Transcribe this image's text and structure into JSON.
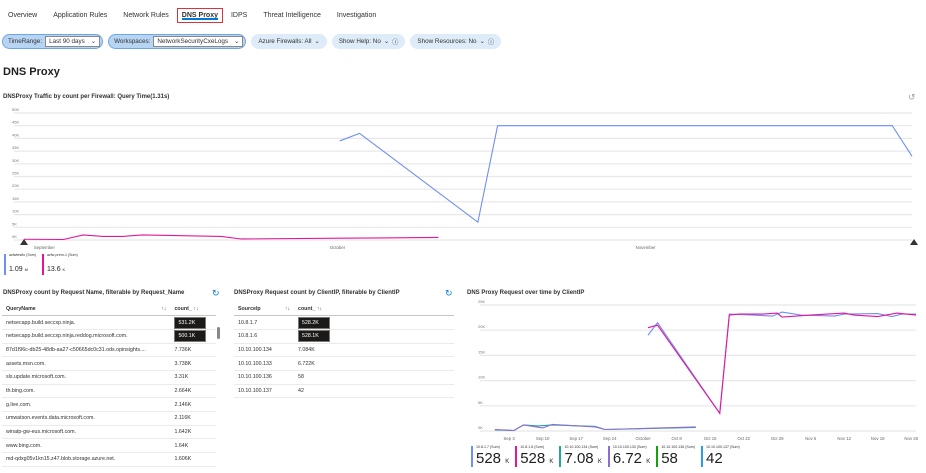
{
  "tabs": [
    "Overview",
    "Application Rules",
    "Network Rules",
    "DNS Proxy",
    "IDPS",
    "Threat Intelligence",
    "Investigation"
  ],
  "active_tab": "DNS Proxy",
  "params": {
    "timerange_label": "TimeRange:",
    "timerange_value": "Last 90 days",
    "workspaces_label": "Workspaces:",
    "workspaces_value": "NetworkSecurityCxeLogs",
    "firewalls": "Azure Firewalls: All",
    "show_help": "Show Help: No",
    "show_resources": "Show Resources: No"
  },
  "page_title": "DNS Proxy",
  "colors": {
    "blue": "#6f8ff5",
    "pink": "#e3169b",
    "teal": "#26a59a",
    "purple": "#8a6fd1",
    "green": "#13a10e",
    "lightblue": "#2a9cf0",
    "accent": "#0078d4"
  },
  "chart_data": [
    {
      "type": "line",
      "title": "DNSProxy Traffic by count per Firewall: Query Time(1.31s)",
      "ylim": [
        0,
        50000
      ],
      "yticks": [
        "0K",
        "5K",
        "10K",
        "15K",
        "20K",
        "25K",
        "30K",
        "35K",
        "40K",
        "45K",
        "50K"
      ],
      "xlim": [
        "2023-08-31",
        "2023-11-29"
      ],
      "xticks": [
        {
          "label": "September",
          "date": "2023-09-01"
        },
        {
          "label": "October",
          "date": "2023-10-01"
        },
        {
          "label": "November",
          "date": "2023-11-01"
        }
      ],
      "grid": true,
      "legend": "bottom-left",
      "series": [
        {
          "name": "azfwtestfo (Sum)",
          "total": "1.09",
          "unit": "M",
          "color": "#6f8ff5",
          "points": [
            [
              "2023-10-02",
              39000
            ],
            [
              "2023-10-04",
              42000
            ],
            [
              "2023-10-16",
              7000
            ],
            [
              "2023-10-18",
              45000
            ],
            [
              "2023-11-27",
              45000
            ],
            [
              "2023-11-29",
              33000
            ]
          ]
        },
        {
          "name": "azfw-prem-1 (Sum)",
          "total": "13.6",
          "unit": "K",
          "color": "#e3169b",
          "points": [
            [
              "2023-08-31",
              300
            ],
            [
              "2023-09-04",
              200
            ],
            [
              "2023-09-06",
              2000
            ],
            [
              "2023-09-08",
              1400
            ],
            [
              "2023-09-10",
              1400
            ],
            [
              "2023-09-12",
              2000
            ],
            [
              "2023-09-20",
              1400
            ],
            [
              "2023-09-22",
              400
            ],
            [
              "2023-10-02",
              700
            ],
            [
              "2023-10-12",
              1000
            ]
          ]
        }
      ]
    },
    {
      "type": "line",
      "title": "DNS Proxy Request over time by ClientIP",
      "ylim": [
        0,
        25000
      ],
      "yticks": [
        "0K",
        "5K",
        "10K",
        "15K",
        "20K",
        "25K"
      ],
      "xlim": [
        "2023-08-30",
        "2023-11-27"
      ],
      "xticks": [
        {
          "label": "Sep 3",
          "date": "2023-09-03"
        },
        {
          "label": "Sep 10",
          "date": "2023-09-10"
        },
        {
          "label": "Sep 17",
          "date": "2023-09-17"
        },
        {
          "label": "Sep 24",
          "date": "2023-09-24"
        },
        {
          "label": "October",
          "date": "2023-10-01"
        },
        {
          "label": "Oct 8",
          "date": "2023-10-08"
        },
        {
          "label": "Oct 15",
          "date": "2023-10-15"
        },
        {
          "label": "Oct 22",
          "date": "2023-10-22"
        },
        {
          "label": "Oct 29",
          "date": "2023-10-29"
        },
        {
          "label": "Nov 5",
          "date": "2023-11-05"
        },
        {
          "label": "Nov 12",
          "date": "2023-11-12"
        },
        {
          "label": "Nov 19",
          "date": "2023-11-19"
        },
        {
          "label": "Nov 26",
          "date": "2023-11-26"
        }
      ],
      "grid": true,
      "legend": "bottom",
      "series": [
        {
          "name": "10.8.1.7 (Sum)",
          "total": "528",
          "unit": "K",
          "color": "#6f8ff5",
          "points": [
            [
              "2023-10-02",
              19000
            ],
            [
              "2023-10-04",
              21500
            ],
            [
              "2023-10-17",
              3500
            ],
            [
              "2023-10-19",
              23200
            ],
            [
              "2023-10-24",
              23000
            ],
            [
              "2023-10-28",
              22800
            ],
            [
              "2023-10-30",
              23600
            ],
            [
              "2023-11-03",
              23000
            ],
            [
              "2023-11-10",
              22800
            ],
            [
              "2023-11-12",
              23200
            ],
            [
              "2023-11-19",
              23300
            ],
            [
              "2023-11-22",
              22700
            ],
            [
              "2023-11-24",
              23200
            ],
            [
              "2023-11-27",
              23200
            ]
          ]
        },
        {
          "name": "10.8.1.6 (Sum)",
          "total": "528",
          "unit": "K",
          "color": "#e3169b",
          "points": [
            [
              "2023-10-02",
              20500
            ],
            [
              "2023-10-04",
              21000
            ],
            [
              "2023-10-17",
              3500
            ],
            [
              "2023-10-19",
              23000
            ],
            [
              "2023-10-21",
              23200
            ],
            [
              "2023-10-26",
              23200
            ],
            [
              "2023-10-29",
              23400
            ],
            [
              "2023-10-30",
              22600
            ],
            [
              "2023-11-05",
              23000
            ],
            [
              "2023-11-12",
              23400
            ],
            [
              "2023-11-14",
              23000
            ],
            [
              "2023-11-19",
              22700
            ],
            [
              "2023-11-23",
              23400
            ],
            [
              "2023-11-27",
              23000
            ]
          ]
        },
        {
          "name": "10.10.100.134 (Sum)",
          "total": "7.08",
          "unit": "K",
          "color": "#26a59a",
          "points": [
            [
              "2023-08-31",
              200
            ],
            [
              "2023-09-04",
              100
            ],
            [
              "2023-09-06",
              1200
            ],
            [
              "2023-09-09",
              1000
            ],
            [
              "2023-09-12",
              1200
            ],
            [
              "2023-09-21",
              900
            ],
            [
              "2023-09-23",
              300
            ],
            [
              "2023-10-12",
              700
            ]
          ]
        },
        {
          "name": "10.10.100.133 (Sum)",
          "total": "6.72",
          "unit": "K",
          "color": "#8a6fd1",
          "points": [
            [
              "2023-08-31",
              300
            ],
            [
              "2023-09-04",
              100
            ],
            [
              "2023-09-06",
              1200
            ],
            [
              "2023-09-10",
              600
            ],
            [
              "2023-09-12",
              1300
            ],
            [
              "2023-09-21",
              800
            ],
            [
              "2023-09-23",
              300
            ],
            [
              "2023-10-12",
              800
            ]
          ]
        },
        {
          "name": "10.10.100.136 (Sum)",
          "total": "58",
          "unit": "",
          "color": "#13a10e",
          "points": []
        },
        {
          "name": "10.10.100.137 (Sum)",
          "total": "42",
          "unit": "",
          "color": "#2a9cf0",
          "points": []
        }
      ]
    }
  ],
  "request_table": {
    "title": "DNSProxy count by Request Name, filterable by Request_Name",
    "columns": [
      "QueryName",
      "count_"
    ],
    "rows": [
      [
        "netsecapp.build.seccxp.ninja.",
        "531.2K"
      ],
      [
        "netsecapp.build.seccxp.ninja.reddog.microsoft.com.",
        "500.1K"
      ],
      [
        "87d1f96c-db25-48db-aa27-c50665dc0c31.ods.opinsights....",
        "7.736K"
      ],
      [
        "assets.msn.com.",
        "3.738K"
      ],
      [
        "sls.update.microsoft.com.",
        "3.31K"
      ],
      [
        "th.bing.com.",
        "2.664K"
      ],
      [
        "g.live.com.",
        "2.146K"
      ],
      [
        "umwatson.events.data.microsoft.com.",
        "2.116K"
      ],
      [
        "winatp-gw-eus.microsoft.com.",
        "1.642K"
      ],
      [
        "www.bing.com.",
        "1.64K"
      ],
      [
        "md-qdxg05v1kn15.z47.blob.storage.azure.net.",
        "1.606K"
      ]
    ],
    "highlighted": 2
  },
  "ip_table": {
    "title": "DNSProxy Request count by ClientIP, filterable by ClientIP",
    "columns": [
      "SourceIp",
      "count_"
    ],
    "rows": [
      [
        "10.8.1.7",
        "528.2K"
      ],
      [
        "10.8.1.6",
        "528.1K"
      ],
      [
        "10.10.100.134",
        "7.084K"
      ],
      [
        "10.10.100.133",
        "6.722K"
      ],
      [
        "10.10.100.136",
        "58"
      ],
      [
        "10.10.100.137",
        "42"
      ]
    ],
    "highlighted": 2
  }
}
